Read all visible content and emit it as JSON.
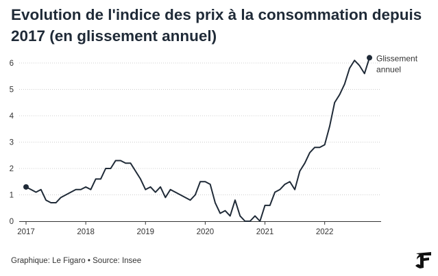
{
  "title": "Evolution de l'indice des prix à la consommation depuis 2017 (en glissement annuel)",
  "footer": {
    "credit": "Graphique: Le Figaro",
    "separator": "•",
    "source": "Source: Insee"
  },
  "logo": {
    "icon": "le-figaro-logo-icon",
    "letter": "F"
  },
  "colors": {
    "line": "#1f2a37",
    "grid": "#cccccc",
    "axis": "#333333"
  },
  "chart_data": {
    "type": "line",
    "title": "Evolution de l'indice des prix à la consommation depuis 2017 (en glissement annuel)",
    "xlabel": "",
    "ylabel": "",
    "xlim": [
      2017.0,
      2022.83
    ],
    "ylim": [
      0,
      6
    ],
    "yticks": [
      0,
      1,
      2,
      3,
      4,
      5,
      6
    ],
    "xticks": [
      {
        "value": 2017,
        "label": "2017"
      },
      {
        "value": 2018,
        "label": "2018"
      },
      {
        "value": 2019,
        "label": "2019"
      },
      {
        "value": 2020,
        "label": "2020"
      },
      {
        "value": 2021,
        "label": "2021"
      },
      {
        "value": 2022,
        "label": "2022"
      }
    ],
    "grid": "horizontal dotted",
    "series": [
      {
        "name": "Glissement annuel",
        "legend_lines": [
          "Glissement",
          "annuel"
        ],
        "start_month": "2017-01",
        "values": [
          1.3,
          1.2,
          1.1,
          1.2,
          0.8,
          0.7,
          0.7,
          0.9,
          1.0,
          1.1,
          1.2,
          1.2,
          1.3,
          1.2,
          1.6,
          1.6,
          2.0,
          2.0,
          2.3,
          2.3,
          2.2,
          2.2,
          1.9,
          1.6,
          1.2,
          1.3,
          1.1,
          1.3,
          0.9,
          1.2,
          1.1,
          1.0,
          0.9,
          0.8,
          1.0,
          1.5,
          1.5,
          1.4,
          0.7,
          0.3,
          0.4,
          0.2,
          0.8,
          0.2,
          0.0,
          0.0,
          0.2,
          0.0,
          0.6,
          0.6,
          1.1,
          1.2,
          1.4,
          1.5,
          1.2,
          1.9,
          2.2,
          2.6,
          2.8,
          2.8,
          2.9,
          3.6,
          4.5,
          4.8,
          5.2,
          5.8,
          6.1,
          5.9,
          5.6,
          6.2
        ]
      }
    ]
  }
}
